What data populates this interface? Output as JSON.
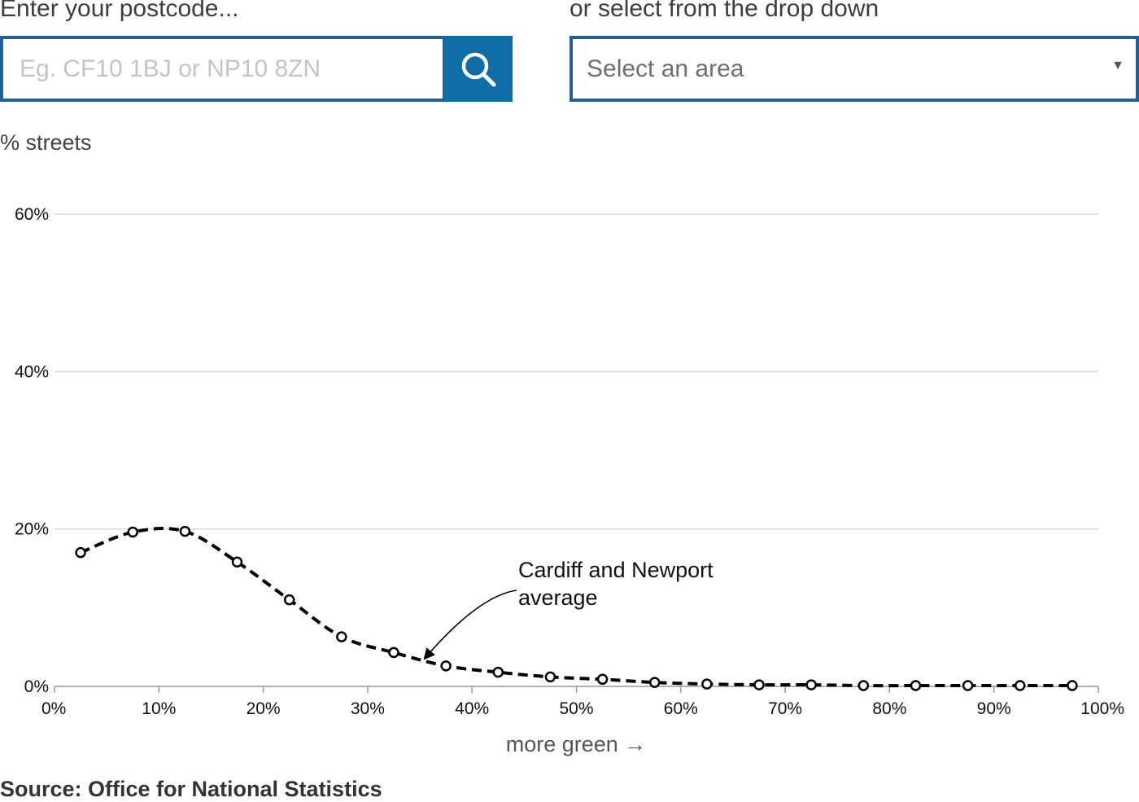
{
  "search": {
    "label": "Enter your postcode...",
    "placeholder": "Eg. CF10 1BJ or NP10 8ZN",
    "value": "",
    "button_icon": "search-icon"
  },
  "dropdown": {
    "label": "or select from the drop down",
    "selected": "Select an area",
    "arrow_icon": "caret-down-icon"
  },
  "colors": {
    "accent": "#206095",
    "button": "#0e6ea5",
    "line": "#000000",
    "grid": "#d9d9d9"
  },
  "chart_data": {
    "type": "line",
    "ylabel": "% streets",
    "xlabel": "more green →",
    "xlim": [
      0,
      100
    ],
    "ylim": [
      0,
      60
    ],
    "x_ticks": [
      "0%",
      "10%",
      "20%",
      "30%",
      "40%",
      "50%",
      "60%",
      "70%",
      "80%",
      "90%",
      "100%"
    ],
    "y_ticks": [
      "0%",
      "20%",
      "40%",
      "60%"
    ],
    "grid": true,
    "series": [
      {
        "name": "Cardiff and Newport average",
        "style": "dashed with open circle markers",
        "x": [
          2.5,
          7.5,
          12.5,
          17.5,
          22.5,
          27.5,
          32.5,
          37.5,
          42.5,
          47.5,
          52.5,
          57.5,
          62.5,
          67.5,
          72.5,
          77.5,
          82.5,
          87.5,
          92.5,
          97.5
        ],
        "y": [
          17.0,
          19.6,
          19.7,
          15.8,
          11.0,
          6.3,
          4.3,
          2.6,
          1.8,
          1.2,
          0.9,
          0.5,
          0.3,
          0.2,
          0.2,
          0.1,
          0.1,
          0.1,
          0.1,
          0.1
        ]
      }
    ],
    "annotation": {
      "lines": [
        "Cardiff and Newport",
        "average"
      ],
      "points_to_x": 35.5
    }
  },
  "source": "Source: Office for National Statistics"
}
